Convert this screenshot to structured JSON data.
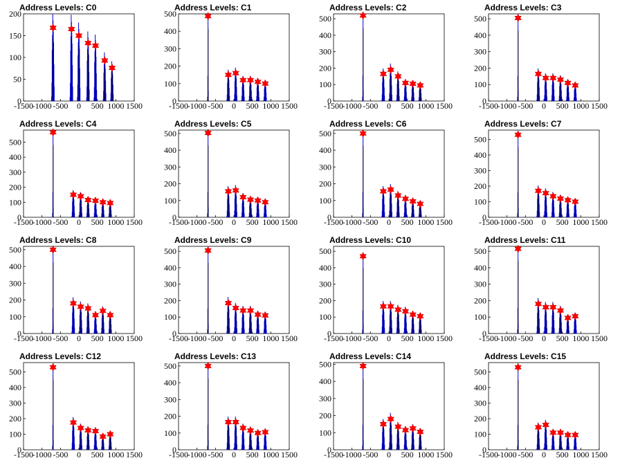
{
  "chart_data": [
    {
      "type": "bar",
      "title": "Address Levels: C0",
      "xlim": [
        -1500,
        1500
      ],
      "xticks": [
        "-1500",
        "-1000",
        "-500",
        "0",
        "500",
        "1000",
        "1500"
      ],
      "ylim": [
        0,
        200
      ],
      "yticks": [
        "0",
        "50",
        "100",
        "150",
        "200"
      ],
      "peaks_x": [
        -700,
        -200,
        0,
        250,
        450,
        700,
        900
      ],
      "peaks_y": [
        168,
        165,
        150,
        133,
        127,
        93,
        76
      ],
      "bar_color": "#0000cc",
      "marker_color": "#ff0000"
    },
    {
      "type": "bar",
      "title": "Address Levels: C1",
      "xlim": [
        -1500,
        1500
      ],
      "xticks": [
        "-1500",
        "-1000",
        "-500",
        "0",
        "500",
        "1000",
        "1500"
      ],
      "ylim": [
        0,
        500
      ],
      "yticks": [
        "0",
        "100",
        "200",
        "300",
        "400",
        "500"
      ],
      "peaks_x": [
        -700,
        -150,
        50,
        250,
        450,
        650,
        850
      ],
      "peaks_y": [
        487,
        150,
        160,
        120,
        120,
        110,
        100
      ],
      "bar_color": "#0000cc",
      "marker_color": "#ff0000"
    },
    {
      "type": "bar",
      "title": "Address Levels: C2",
      "xlim": [
        -1500,
        1500
      ],
      "xticks": [
        "-1500",
        "-1000",
        "-500",
        "0",
        "500",
        "1000",
        "1500"
      ],
      "ylim": [
        0,
        530
      ],
      "yticks": [
        "0",
        "100",
        "200",
        "300",
        "400",
        "500"
      ],
      "peaks_x": [
        -700,
        -150,
        50,
        250,
        450,
        650,
        850
      ],
      "peaks_y": [
        520,
        165,
        190,
        150,
        110,
        105,
        95
      ],
      "bar_color": "#0000cc",
      "marker_color": "#ff0000"
    },
    {
      "type": "bar",
      "title": "Address Levels: C3",
      "xlim": [
        -1500,
        1500
      ],
      "xticks": [
        "-1500",
        "-1000",
        "-500",
        "0",
        "500",
        "1000",
        "1500"
      ],
      "ylim": [
        0,
        530
      ],
      "yticks": [
        "0",
        "100",
        "200",
        "300",
        "400",
        "500"
      ],
      "peaks_x": [
        -700,
        -150,
        50,
        250,
        450,
        650,
        850
      ],
      "peaks_y": [
        505,
        165,
        140,
        140,
        130,
        110,
        95
      ],
      "bar_color": "#0000cc",
      "marker_color": "#ff0000"
    },
    {
      "type": "bar",
      "title": "Address Levels: C4",
      "xlim": [
        -1500,
        1500
      ],
      "xticks": [
        "-1500",
        "-1000",
        "-500",
        "0",
        "500",
        "1000",
        "1500"
      ],
      "ylim": [
        0,
        580
      ],
      "yticks": [
        "0",
        "100",
        "200",
        "300",
        "400",
        "500"
      ],
      "peaks_x": [
        -700,
        -150,
        50,
        250,
        450,
        650,
        850
      ],
      "peaks_y": [
        565,
        150,
        140,
        115,
        110,
        100,
        95
      ],
      "bar_color": "#0000cc",
      "marker_color": "#ff0000"
    },
    {
      "type": "bar",
      "title": "Address Levels: C5",
      "xlim": [
        -1500,
        1500
      ],
      "xticks": [
        "-1500",
        "-1000",
        "-500",
        "0",
        "500",
        "1000",
        "1500"
      ],
      "ylim": [
        0,
        520
      ],
      "yticks": [
        "0",
        "100",
        "200",
        "300",
        "400",
        "500"
      ],
      "peaks_x": [
        -700,
        -150,
        50,
        250,
        450,
        650,
        850
      ],
      "peaks_y": [
        503,
        155,
        160,
        120,
        105,
        100,
        90
      ],
      "bar_color": "#0000cc",
      "marker_color": "#ff0000"
    },
    {
      "type": "bar",
      "title": "Address Levels: C6",
      "xlim": [
        -1500,
        1500
      ],
      "xticks": [
        "-1500",
        "-1000",
        "-500",
        "0",
        "500",
        "1000",
        "1500"
      ],
      "ylim": [
        0,
        520
      ],
      "yticks": [
        "0",
        "100",
        "200",
        "300",
        "400",
        "500"
      ],
      "peaks_x": [
        -700,
        -150,
        50,
        250,
        450,
        650,
        850
      ],
      "peaks_y": [
        500,
        155,
        165,
        130,
        110,
        95,
        80
      ],
      "bar_color": "#0000cc",
      "marker_color": "#ff0000"
    },
    {
      "type": "bar",
      "title": "Address Levels: C7",
      "xlim": [
        -1500,
        1500
      ],
      "xticks": [
        "-1500",
        "-1000",
        "-500",
        "0",
        "500",
        "1000",
        "1500"
      ],
      "ylim": [
        0,
        560
      ],
      "yticks": [
        "0",
        "100",
        "200",
        "300",
        "400",
        "500"
      ],
      "peaks_x": [
        -700,
        -150,
        50,
        250,
        450,
        650,
        850
      ],
      "peaks_y": [
        530,
        170,
        155,
        135,
        120,
        110,
        100
      ],
      "bar_color": "#0000cc",
      "marker_color": "#ff0000"
    },
    {
      "type": "bar",
      "title": "Address Levels: C8",
      "xlim": [
        -1500,
        1500
      ],
      "xticks": [
        "-1500",
        "-1000",
        "-500",
        "0",
        "500",
        "1000",
        "1500"
      ],
      "ylim": [
        0,
        520
      ],
      "yticks": [
        "0",
        "100",
        "200",
        "300",
        "400",
        "500"
      ],
      "peaks_x": [
        -700,
        -150,
        50,
        250,
        450,
        650,
        850
      ],
      "peaks_y": [
        500,
        180,
        160,
        150,
        110,
        135,
        110
      ],
      "bar_color": "#0000cc",
      "marker_color": "#ff0000"
    },
    {
      "type": "bar",
      "title": "Address Levels: C9",
      "xlim": [
        -1500,
        1500
      ],
      "xticks": [
        "-1500",
        "-1000",
        "-500",
        "0",
        "500",
        "1000",
        "1500"
      ],
      "ylim": [
        0,
        530
      ],
      "yticks": [
        "0",
        "100",
        "200",
        "300",
        "400",
        "500"
      ],
      "peaks_x": [
        -700,
        -150,
        50,
        250,
        450,
        650,
        850
      ],
      "peaks_y": [
        505,
        185,
        155,
        140,
        140,
        115,
        110
      ],
      "bar_color": "#0000cc",
      "marker_color": "#ff0000"
    },
    {
      "type": "bar",
      "title": "Address Levels: C10",
      "xlim": [
        -1500,
        1500
      ],
      "xticks": [
        "-1500",
        "-1000",
        "-500",
        "0",
        "500",
        "1000",
        "1500"
      ],
      "ylim": [
        0,
        530
      ],
      "yticks": [
        "0",
        "100",
        "200",
        "300",
        "400",
        "500"
      ],
      "peaks_x": [
        -700,
        -150,
        50,
        250,
        450,
        650,
        850
      ],
      "peaks_y": [
        470,
        165,
        165,
        145,
        135,
        115,
        105
      ],
      "bar_color": "#0000cc",
      "marker_color": "#ff0000"
    },
    {
      "type": "bar",
      "title": "Address Levels: C11",
      "xlim": [
        -1500,
        1500
      ],
      "xticks": [
        "-1500",
        "-1000",
        "-500",
        "0",
        "500",
        "1000",
        "1500"
      ],
      "ylim": [
        0,
        530
      ],
      "yticks": [
        "0",
        "100",
        "200",
        "300",
        "400",
        "500"
      ],
      "peaks_x": [
        -700,
        -150,
        50,
        250,
        450,
        650,
        850
      ],
      "peaks_y": [
        515,
        180,
        160,
        160,
        140,
        95,
        105
      ],
      "bar_color": "#0000cc",
      "marker_color": "#ff0000"
    },
    {
      "type": "bar",
      "title": "Address Levels: C12",
      "xlim": [
        -1500,
        1500
      ],
      "xticks": [
        "-1500",
        "-1000",
        "-500",
        "0",
        "500",
        "1000",
        "1500"
      ],
      "ylim": [
        0,
        560
      ],
      "yticks": [
        "0",
        "100",
        "200",
        "300",
        "400",
        "500"
      ],
      "peaks_x": [
        -700,
        -150,
        50,
        250,
        450,
        650,
        850
      ],
      "peaks_y": [
        530,
        175,
        140,
        125,
        120,
        85,
        100
      ],
      "bar_color": "#0000cc",
      "marker_color": "#ff0000"
    },
    {
      "type": "bar",
      "title": "Address Levels: C13",
      "xlim": [
        -1500,
        1500
      ],
      "xticks": [
        "-1500",
        "-1000",
        "-500",
        "0",
        "500",
        "1000",
        "1500"
      ],
      "ylim": [
        0,
        520
      ],
      "yticks": [
        "0",
        "100",
        "200",
        "300",
        "400",
        "500"
      ],
      "peaks_x": [
        -700,
        -150,
        50,
        250,
        450,
        650,
        850
      ],
      "peaks_y": [
        500,
        165,
        165,
        130,
        115,
        100,
        105
      ],
      "bar_color": "#0000cc",
      "marker_color": "#ff0000"
    },
    {
      "type": "bar",
      "title": "Address Levels: C14",
      "xlim": [
        -1500,
        1500
      ],
      "xticks": [
        "-1500",
        "-1000",
        "-500",
        "0",
        "500",
        "1000",
        "1500"
      ],
      "ylim": [
        0,
        510
      ],
      "yticks": [
        "0",
        "100",
        "200",
        "300",
        "400",
        "500"
      ],
      "peaks_x": [
        -700,
        -150,
        50,
        250,
        450,
        650,
        850
      ],
      "peaks_y": [
        490,
        150,
        180,
        135,
        115,
        125,
        105
      ],
      "bar_color": "#0000cc",
      "marker_color": "#ff0000"
    },
    {
      "type": "bar",
      "title": "Address Levels: C15",
      "xlim": [
        -1500,
        1500
      ],
      "xticks": [
        "-1500",
        "-1000",
        "-500",
        "0",
        "500",
        "1000",
        "1500"
      ],
      "ylim": [
        0,
        560
      ],
      "yticks": [
        "0",
        "100",
        "200",
        "300",
        "400",
        "500"
      ],
      "peaks_x": [
        -700,
        -150,
        50,
        250,
        450,
        650,
        850
      ],
      "peaks_y": [
        530,
        145,
        160,
        110,
        110,
        95,
        95
      ],
      "bar_color": "#0000cc",
      "marker_color": "#ff0000"
    }
  ]
}
